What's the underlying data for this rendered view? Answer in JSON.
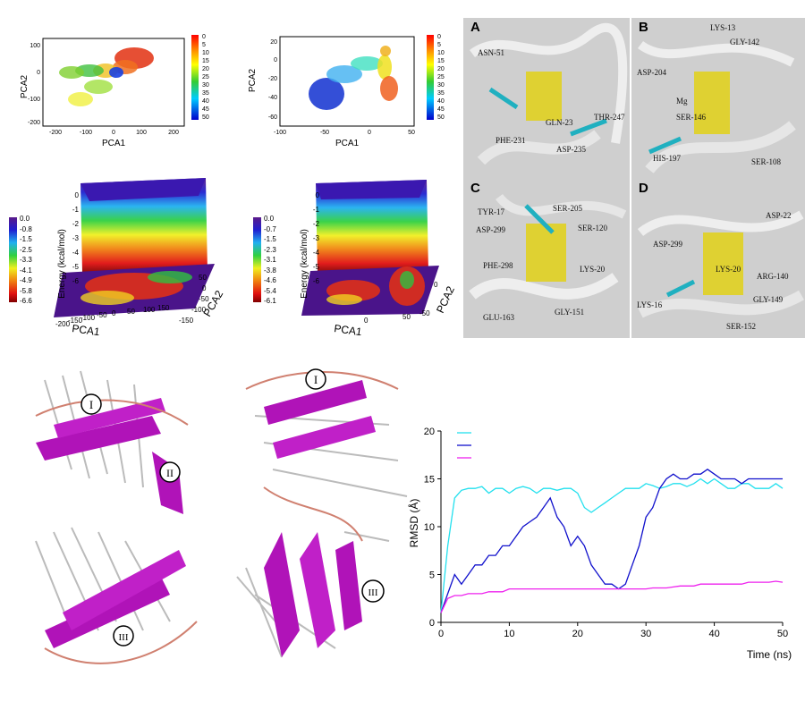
{
  "pca_scatter": [
    {
      "xlabel": "PCA1",
      "ylabel": "PCA2",
      "xticks": [
        "-200",
        "-100",
        "0",
        "100",
        "200"
      ],
      "yticks": [
        "100",
        "0",
        "-100",
        "-200"
      ],
      "colorbar_ticks": [
        "0",
        "5",
        "10",
        "15",
        "20",
        "25",
        "30",
        "35",
        "40",
        "45",
        "50"
      ]
    },
    {
      "xlabel": "PCA1",
      "ylabel": "PCA2",
      "xticks": [
        "-100",
        "-50",
        "0",
        "50"
      ],
      "yticks": [
        "20",
        "0",
        "-20",
        "-40",
        "-60"
      ],
      "colorbar_ticks": [
        "0",
        "5",
        "10",
        "15",
        "20",
        "25",
        "30",
        "35",
        "40",
        "45",
        "50"
      ]
    }
  ],
  "energy_landscapes": [
    {
      "zlabel": "Energy (kcal/mol)",
      "xlabel": "PCA1",
      "ylabel": "PCA2",
      "colorbar_ticks": [
        "0.0",
        "-0.8",
        "-1.5",
        "-2.5",
        "-3.3",
        "-4.1",
        "-4.9",
        "-5.8",
        "-6.6"
      ],
      "zticks": [
        "0",
        "-1",
        "-2",
        "-3",
        "-4",
        "-5",
        "-6"
      ],
      "xticks": [
        "-200",
        "-150",
        "-100",
        "-50",
        "0",
        "50",
        "100",
        "150"
      ],
      "yticks": [
        "50",
        "0",
        "-50",
        "-100",
        "-150"
      ]
    },
    {
      "zlabel": "Energy (kcal/mol)",
      "xlabel": "PCA1",
      "ylabel": "PCA2",
      "colorbar_ticks": [
        "0.0",
        "-0.7",
        "-1.5",
        "-2.3",
        "-3.1",
        "-3.8",
        "-4.6",
        "-5.4",
        "-6.1"
      ],
      "zticks": [
        "0",
        "-1",
        "-2",
        "-3",
        "-4",
        "-5",
        "-6"
      ],
      "xticks": [
        "0",
        "50"
      ],
      "yticks": [
        "0",
        "-50"
      ]
    }
  ],
  "binding_panels": [
    {
      "letter": "A",
      "labels": [
        "ASN-51",
        "GLN-23",
        "PHE-231",
        "ASP-235",
        "THR-247"
      ]
    },
    {
      "letter": "B",
      "labels": [
        "LYS-13",
        "GLY-142",
        "ASP-204",
        "Mg",
        "SER-146",
        "HIS-197",
        "SER-108"
      ]
    },
    {
      "letter": "C",
      "labels": [
        "TYR-17",
        "SER-205",
        "ASP-299",
        "SER-120",
        "PHE-298",
        "LYS-20",
        "GLU-163",
        "GLY-151"
      ]
    },
    {
      "letter": "D",
      "labels": [
        "ASP-22",
        "ASP-299",
        "LYS-20",
        "ARG-140",
        "LYS-16",
        "GLY-149",
        "SER-152"
      ]
    }
  ],
  "domain_labels": {
    "left": [
      "I",
      "II",
      "III"
    ],
    "right": [
      "I",
      "III"
    ]
  },
  "chart_data": {
    "type": "line",
    "title": "",
    "xlabel": "Time (ns)",
    "ylabel": "RMSD (Å)",
    "xlim": [
      0,
      50
    ],
    "ylim": [
      0,
      20
    ],
    "xticks": [
      "0",
      "10",
      "20",
      "30",
      "40",
      "50"
    ],
    "yticks": [
      "0",
      "5",
      "10",
      "15",
      "20"
    ],
    "legend_position": "top-left",
    "x": [
      0,
      1,
      2,
      3,
      4,
      5,
      6,
      7,
      8,
      9,
      10,
      11,
      12,
      13,
      14,
      15,
      16,
      17,
      18,
      19,
      20,
      21,
      22,
      23,
      24,
      25,
      26,
      27,
      28,
      29,
      30,
      31,
      32,
      33,
      34,
      35,
      36,
      37,
      38,
      39,
      40,
      41,
      42,
      43,
      44,
      45,
      46,
      47,
      48,
      49,
      50
    ],
    "series": [
      {
        "color": "#22e0ee",
        "values": [
          1,
          8,
          13,
          13.8,
          14,
          14,
          14.2,
          13.5,
          14,
          14,
          13.5,
          14,
          14.2,
          14,
          13.5,
          14,
          14,
          13.8,
          14,
          14,
          13.5,
          12,
          11.5,
          12,
          12.5,
          13,
          13.5,
          14,
          14,
          14,
          14.5,
          14.3,
          14,
          14.2,
          14.5,
          14.5,
          14.2,
          14.5,
          15,
          14.5,
          15,
          14.5,
          14,
          14,
          14.5,
          14.5,
          14,
          14,
          14,
          14.5,
          14
        ]
      },
      {
        "color": "#1010cc",
        "values": [
          1,
          3,
          5,
          4,
          5,
          6,
          6,
          7,
          7,
          8,
          8,
          9,
          10,
          10.5,
          11,
          12,
          13,
          11,
          10,
          8,
          9,
          8,
          6,
          5,
          4,
          4,
          3.5,
          4,
          6,
          8,
          11,
          12,
          14,
          15,
          15.5,
          15,
          15,
          15.5,
          15.5,
          16,
          15.5,
          15,
          15,
          15,
          14.5,
          15,
          15,
          15,
          15,
          15,
          15
        ]
      },
      {
        "color": "#ee22ee",
        "values": [
          1,
          2.5,
          2.8,
          2.8,
          3,
          3,
          3,
          3.2,
          3.2,
          3.2,
          3.5,
          3.5,
          3.5,
          3.5,
          3.5,
          3.5,
          3.5,
          3.5,
          3.5,
          3.5,
          3.5,
          3.5,
          3.5,
          3.5,
          3.5,
          3.5,
          3.5,
          3.5,
          3.5,
          3.5,
          3.5,
          3.6,
          3.6,
          3.6,
          3.7,
          3.8,
          3.8,
          3.8,
          4,
          4,
          4,
          4,
          4,
          4,
          4,
          4.2,
          4.2,
          4.2,
          4.2,
          4.3,
          4.2
        ]
      }
    ]
  }
}
